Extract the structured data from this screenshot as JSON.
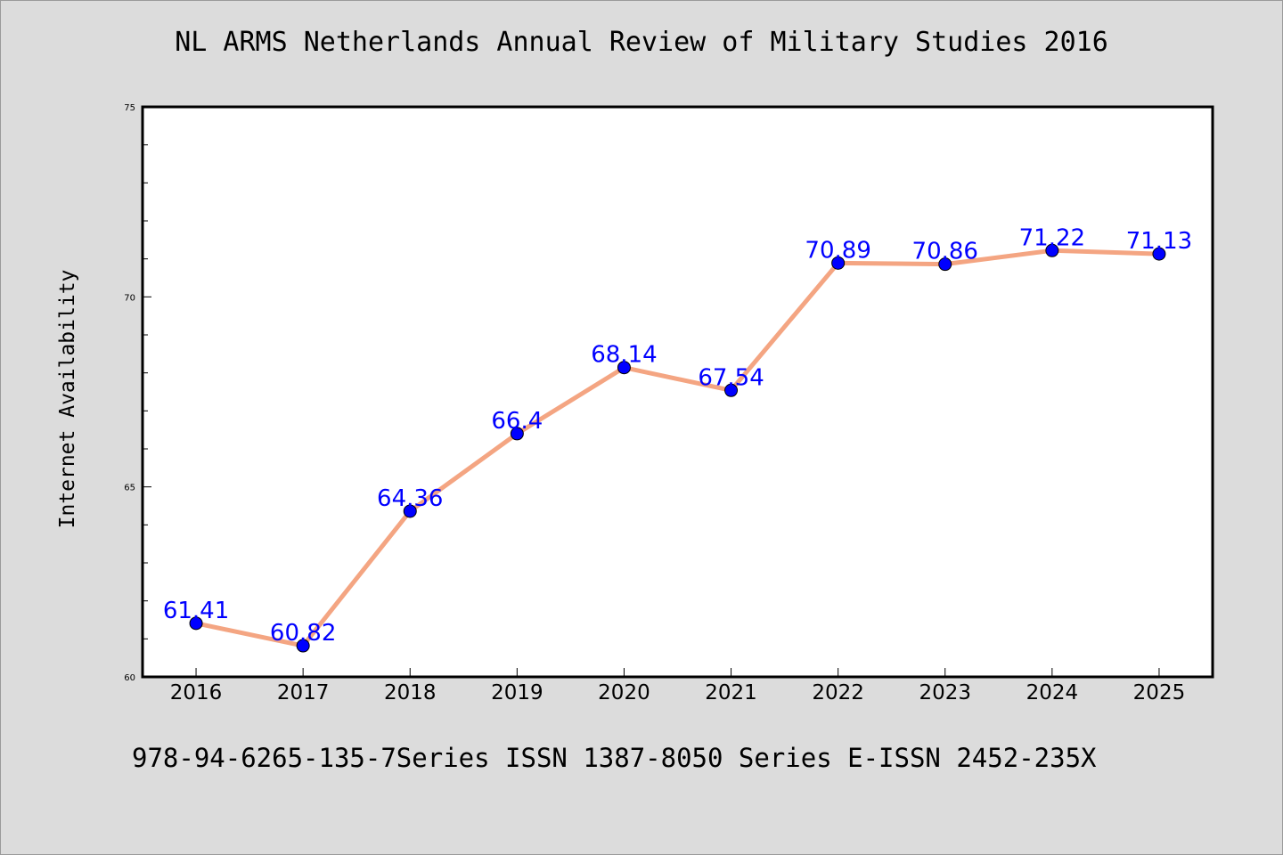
{
  "chart_data": {
    "type": "line",
    "title": "NL ARMS Netherlands Annual Review of Military Studies 2016",
    "xlabel": "",
    "ylabel": "Internet Availability",
    "footer": "978-94-6265-135-7Series ISSN 1387-8050 Series E-ISSN 2452-235X",
    "categories": [
      "2016",
      "2017",
      "2018",
      "2019",
      "2020",
      "2021",
      "2022",
      "2023",
      "2024",
      "2025"
    ],
    "values": [
      61.41,
      60.82,
      64.36,
      66.4,
      68.14,
      67.54,
      70.89,
      70.86,
      71.22,
      71.13
    ],
    "data_labels": [
      "61.41",
      "60.82",
      "64.36",
      "66.4",
      "68.14",
      "67.54",
      "70.89",
      "70.86",
      "71.22",
      "71.13"
    ],
    "ylim": [
      60,
      75
    ],
    "y_ticks": [
      60,
      65,
      70,
      75
    ],
    "y_minor_step": 1,
    "grid": false,
    "legend": "none",
    "colors": {
      "line": "#f4a582",
      "marker": "#0000ff",
      "label": "#0000ff",
      "plot_bg": "#ffffff",
      "figure_bg": "#dcdcdc"
    }
  }
}
